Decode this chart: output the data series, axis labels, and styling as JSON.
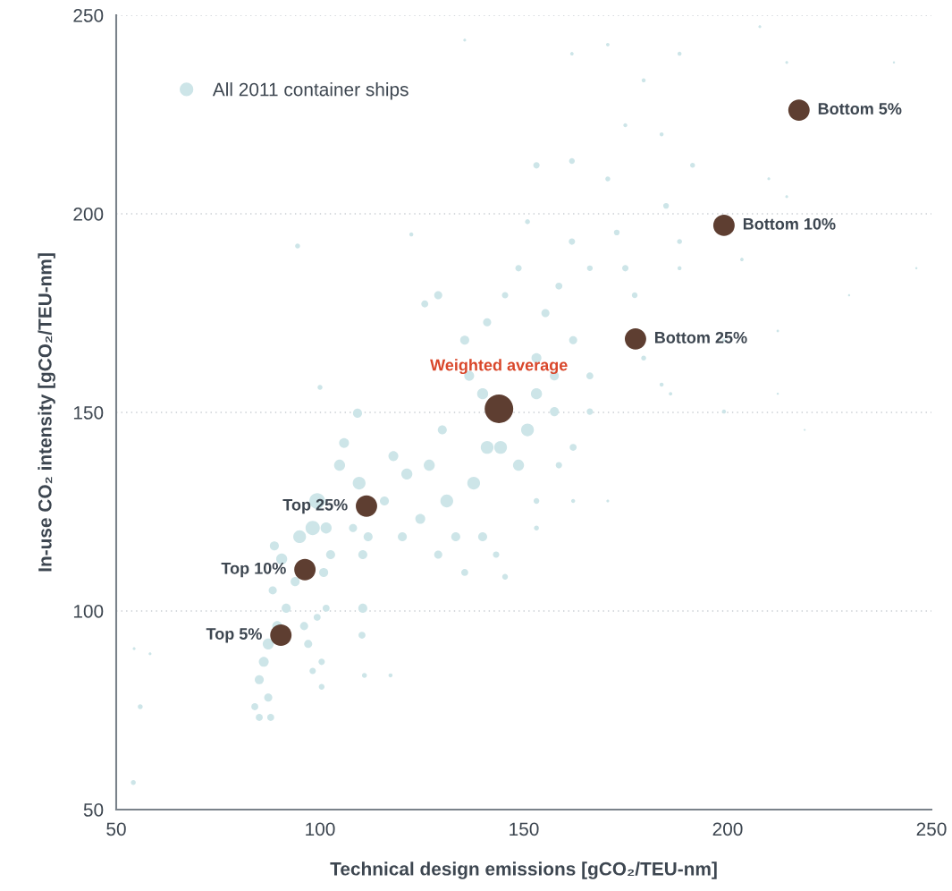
{
  "chart_data": {
    "type": "bubble",
    "xlabel": "Technical design emissions [gCO₂/TEU-nm]",
    "ylabel": "In-use CO₂ intensity [gCO₂/TEU-nm]",
    "xlim": [
      50,
      250
    ],
    "ylim": [
      50,
      250
    ],
    "xticks": [
      50,
      100,
      150,
      200,
      250
    ],
    "yticks": [
      50,
      100,
      150,
      200,
      250
    ],
    "grid": "y",
    "legend": "top left",
    "marker": "circle",
    "series": [
      {
        "name": "All 2011 container ships",
        "color": "#cde5e8",
        "x": [
          54.2,
          55.9,
          58.3,
          54.4,
          94.5,
          85.1,
          87.9,
          84.0,
          87.3,
          85.1,
          86.2,
          87.3,
          89.5,
          91.7,
          88.4,
          88.8,
          90.6,
          93.9,
          96.1,
          97.1,
          98.2,
          100.4,
          100.4,
          99.3,
          101.5,
          95,
          98.2,
          99.3,
          101.5,
          102.6,
          100.9,
          104.8,
          105.9,
          109.2,
          109.6,
          108.1,
          110.5,
          110.5,
          110.3,
          110.9,
          117.3,
          111.8,
          115.8,
          118,
          120.2,
          121.3,
          124.6,
          126.8,
          129,
          130,
          131.1,
          133.3,
          135.5,
          137.7,
          139.9,
          141,
          143.2,
          145.4,
          139.9,
          136.6,
          135.5,
          141,
          145.4,
          148.7,
          125.7,
          129,
          100,
          122.4,
          144.3,
          148.7,
          150.9,
          153.1,
          153.1,
          157.5,
          157.5,
          155.3,
          158.6,
          162.1,
          162.1,
          166.2,
          166.2,
          158.6,
          153.1,
          153.1,
          161.8,
          166.2,
          153.1,
          150.9,
          135.5,
          161.8,
          170.6,
          174.9,
          172.8,
          174.9,
          177.2,
          179.4,
          183.8,
          186,
          188.2,
          184.9,
          188.2,
          183.8,
          179.4,
          161.8,
          188.2,
          199.1,
          199.1,
          203.5,
          210.1,
          214.5,
          225.4,
          232,
          240.8,
          246.3,
          229.8,
          212.3,
          207.9,
          214.5,
          170.6,
          191.4,
          212.3,
          218.9,
          170.6,
          162.1
        ],
        "values": [
          56.8,
          75.9,
          89.2,
          90.5,
          191.9,
          73.2,
          73.2,
          75.9,
          78.2,
          82.7,
          87.2,
          91.7,
          96.2,
          100.7,
          105.2,
          116.4,
          113.1,
          107.4,
          96.2,
          91.7,
          84.9,
          80.9,
          87.2,
          98.4,
          100.7,
          118.7,
          120.9,
          127.7,
          120.9,
          114.2,
          109.7,
          136.7,
          142.3,
          149.8,
          132.2,
          120.9,
          114.2,
          100.7,
          93.9,
          83.8,
          83.8,
          118.7,
          127.7,
          139,
          118.7,
          134.5,
          123.2,
          136.7,
          114.2,
          145.6,
          127.7,
          118.7,
          109.7,
          132.2,
          118.7,
          141.2,
          114.2,
          108.6,
          154.7,
          159.2,
          168.2,
          172.7,
          179.5,
          186.3,
          177.3,
          179.5,
          156.3,
          194.8,
          141.2,
          136.7,
          145.6,
          154.7,
          163.7,
          150.2,
          159.2,
          175,
          181.8,
          168.2,
          141.2,
          159.2,
          150.2,
          136.7,
          127.7,
          120.9,
          193,
          186.3,
          212.2,
          198,
          243.7,
          213.3,
          208.8,
          222.3,
          195.3,
          186.3,
          179.5,
          163.7,
          157,
          154.7,
          186.3,
          202,
          193,
          220,
          233.6,
          240.3,
          240.3,
          150.2,
          168.2,
          188.5,
          208.8,
          204.3,
          197.5,
          226.8,
          238.1,
          186.3,
          179.5,
          170.5,
          247.1,
          238.1,
          242.6,
          212.2,
          154.7,
          145.6,
          127.7,
          127.7
        ],
        "sizes": [
          0.03,
          0.03,
          0.01,
          0.01,
          0.03,
          0.06,
          0.06,
          0.06,
          0.08,
          0.1,
          0.12,
          0.15,
          0.12,
          0.1,
          0.08,
          0.1,
          0.15,
          0.1,
          0.08,
          0.08,
          0.05,
          0.04,
          0.05,
          0.06,
          0.06,
          0.2,
          0.25,
          0.3,
          0.15,
          0.1,
          0.1,
          0.15,
          0.12,
          0.1,
          0.2,
          0.08,
          0.1,
          0.1,
          0.06,
          0.03,
          0.02,
          0.1,
          0.1,
          0.12,
          0.1,
          0.15,
          0.12,
          0.15,
          0.08,
          0.1,
          0.2,
          0.1,
          0.06,
          0.2,
          0.1,
          0.2,
          0.05,
          0.04,
          0.15,
          0.12,
          0.1,
          0.08,
          0.05,
          0.05,
          0.06,
          0.08,
          0.03,
          0.02,
          0.2,
          0.15,
          0.2,
          0.15,
          0.12,
          0.1,
          0.1,
          0.08,
          0.06,
          0.08,
          0.06,
          0.06,
          0.05,
          0.05,
          0.04,
          0.03,
          0.05,
          0.04,
          0.05,
          0.03,
          0.01,
          0.04,
          0.03,
          0.02,
          0.04,
          0.05,
          0.04,
          0.03,
          0.02,
          0.015,
          0.02,
          0.04,
          0.03,
          0.02,
          0.02,
          0.015,
          0.02,
          0.02,
          0.015,
          0.015,
          0.01,
          0.01,
          0.01,
          0.008,
          0.006,
          0.006,
          0.006,
          0.008,
          0.01,
          0.01,
          0.015,
          0.03,
          0.006,
          0.005,
          0.01,
          0.02
        ]
      },
      {
        "color": "#5e3e31",
        "x": [
          90.4,
          96.3,
          111.4,
          143.9,
          177.4,
          199.1,
          217.5
        ],
        "values": [
          93.9,
          110.4,
          126.4,
          150.9,
          168.5,
          197.1,
          226.1
        ],
        "sizes": [
          0.56,
          0.56,
          0.56,
          1,
          0.56,
          0.56,
          0.56
        ]
      }
    ],
    "annotations": [
      {
        "text": "Top 5%",
        "x": 90.4,
        "y": 93.9
      },
      {
        "text": "Top 10%",
        "x": 96.3,
        "y": 110.4
      },
      {
        "text": "Top 25%",
        "x": 111.4,
        "y": 126.4
      },
      {
        "text": "Weighted average",
        "x": 143.9,
        "y": 150.9
      },
      {
        "text": "Bottom 25%",
        "x": 177.4,
        "y": 168.5
      },
      {
        "text": "Bottom 10%",
        "x": 199.1,
        "y": 197.1
      },
      {
        "text": "Bottom 5%",
        "x": 217.5,
        "y": 226.1
      }
    ]
  }
}
